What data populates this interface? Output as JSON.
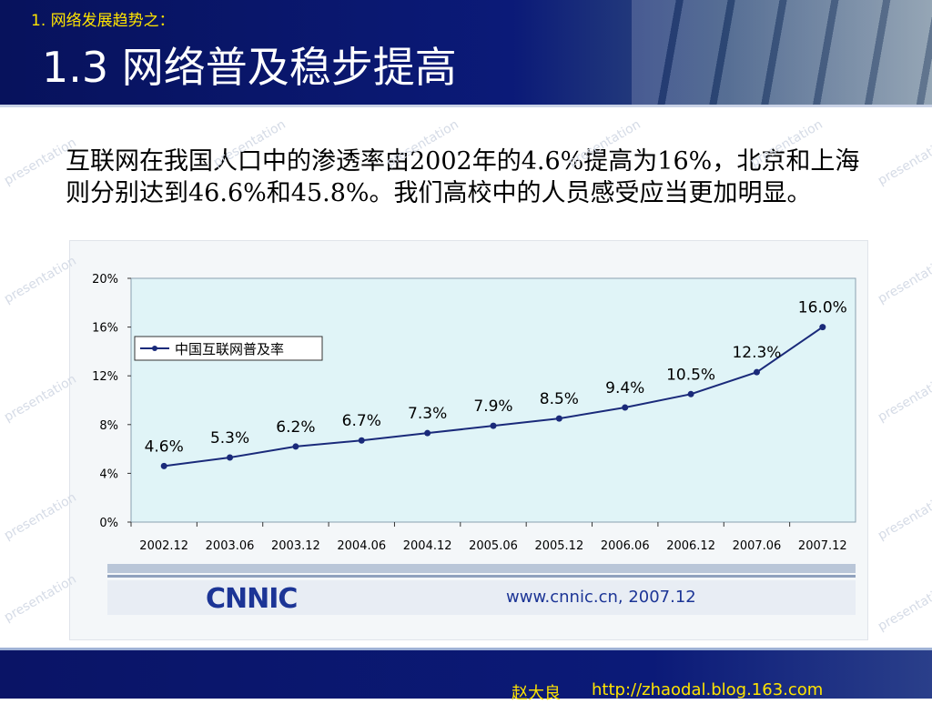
{
  "header": {
    "subtitle": "1. 网络发展趋势之：",
    "title": "1.3  网络普及稳步提高"
  },
  "body_text": "互联网在我国人口中的渗透率由2002年的4.6%提高为16%，北京和上海则分别达到46.6%和45.8%。我们高校中的人员感受应当更加明显。",
  "watermark_text": "presentation",
  "chart_data": {
    "type": "line",
    "categories": [
      "2002.12",
      "2003.06",
      "2003.12",
      "2004.06",
      "2004.12",
      "2005.06",
      "2005.12",
      "2006.06",
      "2006.12",
      "2007.06",
      "2007.12"
    ],
    "series": [
      {
        "name": "中国互联网普及率",
        "values": [
          4.6,
          5.3,
          6.2,
          6.7,
          7.3,
          7.9,
          8.5,
          9.4,
          10.5,
          12.3,
          16.0
        ],
        "labels": [
          "4.6%",
          "5.3%",
          "6.2%",
          "6.7%",
          "7.3%",
          "7.9%",
          "8.5%",
          "9.4%",
          "10.5%",
          "12.3%",
          "16.0%"
        ]
      }
    ],
    "y_ticks": [
      "0%",
      "4%",
      "8%",
      "12%",
      "16%",
      "20%"
    ],
    "ylim": [
      0,
      20
    ],
    "legend_position": "top-left",
    "line_color": "#1a2a7a",
    "plot_bg": "#e0f4f7"
  },
  "chart_footer": {
    "logo": "CNNIC",
    "source": "www.cnnic.cn,  2007.12"
  },
  "footer": {
    "author": "赵大良",
    "url": "http://zhaodal.blog.163.com"
  }
}
